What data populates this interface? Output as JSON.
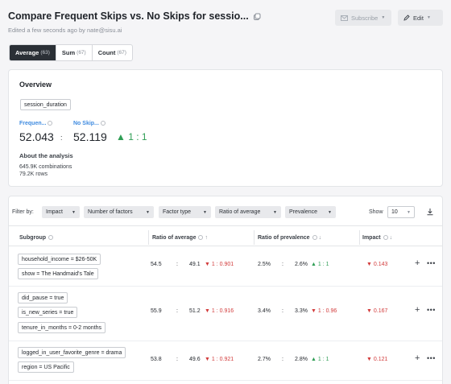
{
  "header": {
    "title": "Compare Frequent Skips vs. No Skips for sessio...",
    "subtitle": "Edited a few seconds ago by nate@sisu.ai",
    "subscribe_label": "Subscribe",
    "edit_label": "Edit"
  },
  "tabs": [
    {
      "label": "Average",
      "count": "(63)",
      "active": true
    },
    {
      "label": "Sum",
      "count": "(67)",
      "active": false
    },
    {
      "label": "Count",
      "count": "(67)",
      "active": false
    }
  ],
  "overview": {
    "title": "Overview",
    "metric": "session_duration",
    "group_a": {
      "label": "Frequen...",
      "value": "52.043"
    },
    "group_b": {
      "label": "No Skip...",
      "value": "52.119"
    },
    "ratio": "1 : 1",
    "about_title": "About the analysis",
    "combinations": "645.9K combinations",
    "rows": "79.2K rows"
  },
  "filters": {
    "label": "Filter by:",
    "buttons": [
      "Impact",
      "Number of factors",
      "Factor type",
      "Ratio of average",
      "Prevalence"
    ],
    "show_label": "Show",
    "show_value": "10"
  },
  "table": {
    "headers": {
      "subgroup": "Subgroup",
      "ratio_avg": "Ratio of average",
      "ratio_prev": "Ratio of prevalence",
      "impact": "Impact"
    },
    "rows": [
      {
        "conditions": [
          "household_income = $26-50K",
          "show = The Handmaid's Tale"
        ],
        "avg_a": "54.5",
        "avg_b": "49.1",
        "avg_ratio": "1 : 0.901",
        "prev_a": "2.5%",
        "prev_b": "2.6%",
        "prev_ratio": "1 : 1",
        "impact": "0.143"
      },
      {
        "conditions": [
          "did_pause = true",
          "is_new_series = true",
          "tenure_in_months = 0-2 months"
        ],
        "avg_a": "55.9",
        "avg_b": "51.2",
        "avg_ratio": "1 : 0.916",
        "prev_a": "3.4%",
        "prev_b": "3.3%",
        "prev_ratio": "1 : 0.96",
        "impact": "0.167"
      },
      {
        "conditions": [
          "logged_in_user_favorite_genre = drama",
          "region = US Pacific"
        ],
        "avg_a": "53.8",
        "avg_b": "49.6",
        "avg_ratio": "1 : 0.921",
        "prev_a": "2.7%",
        "prev_b": "2.8%",
        "prev_ratio": "1 : 1",
        "impact": "0.121"
      }
    ]
  },
  "colors": {
    "positive": "#2f9e55",
    "negative": "#d23b3b",
    "accent": "#3f8be0",
    "active_tab": "#2b3036"
  },
  "icons": [
    "copy-icon",
    "mail-icon",
    "pencil-icon",
    "info-icon",
    "sort-asc-icon",
    "sort-desc-icon",
    "download-icon",
    "triangle-up-icon",
    "triangle-down-icon",
    "plus-icon",
    "more-icon"
  ]
}
